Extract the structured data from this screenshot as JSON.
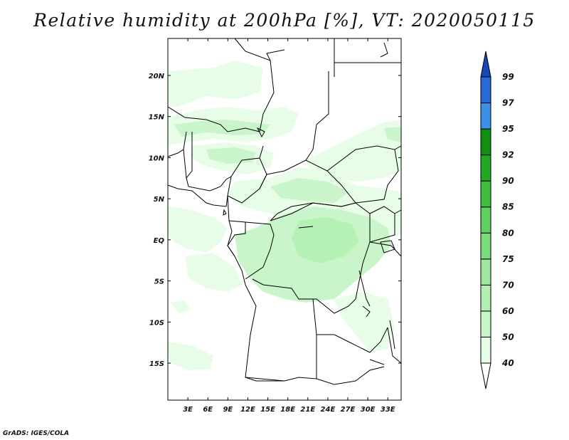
{
  "title": "Relative humidity at 200hPa [%], VT: 2020050115",
  "credit": "GrADS: IGES/COLA",
  "map": {
    "lat_labels": [
      "20N",
      "15N",
      "10N",
      "5N",
      "EQ",
      "5S",
      "10S",
      "15S"
    ],
    "lat_values": [
      20,
      15,
      10,
      5,
      0,
      -5,
      -10,
      -15
    ],
    "lon_labels": [
      "3E",
      "6E",
      "9E",
      "12E",
      "15E",
      "18E",
      "21E",
      "24E",
      "27E",
      "30E",
      "33E"
    ],
    "lon_values": [
      3,
      6,
      9,
      12,
      15,
      18,
      21,
      24,
      27,
      30,
      33
    ],
    "lon_range": [
      0,
      35
    ],
    "lat_range": [
      -19.5,
      24.5
    ]
  },
  "colorbar": {
    "levels": [
      "40",
      "50",
      "60",
      "70",
      "75",
      "80",
      "85",
      "90",
      "92",
      "95",
      "97",
      "99"
    ],
    "colors": [
      "#ffffff",
      "#e6fde6",
      "#c8f5c8",
      "#b2f0b2",
      "#9ee79e",
      "#7cdc7c",
      "#5fcf5f",
      "#3fbf3f",
      "#22a822",
      "#108f10",
      "#3c90e8",
      "#2868d8",
      "#1848b8"
    ]
  },
  "colors": {
    "border": "#000000",
    "humidity_light": "#e6fde6",
    "humidity_mid": "#c8f5c8",
    "humidity_strong": "#b2f0b2"
  }
}
